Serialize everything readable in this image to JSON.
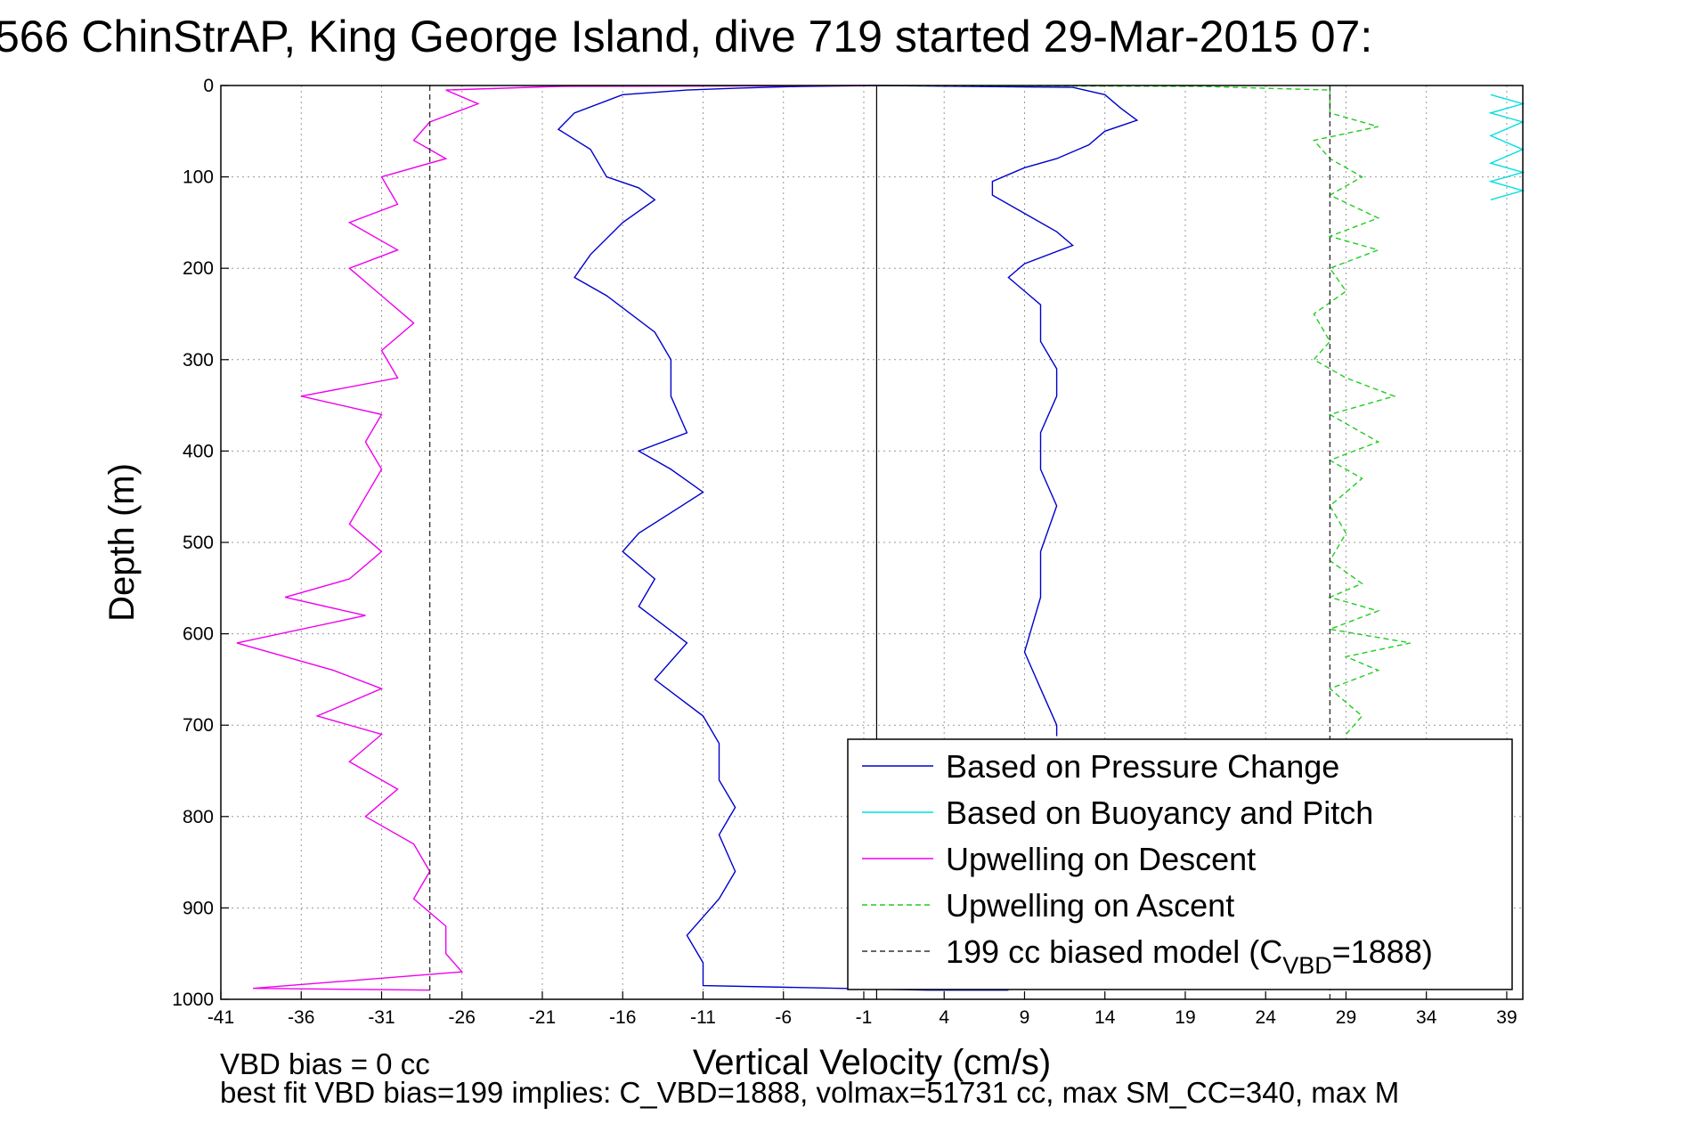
{
  "chart_data": {
    "type": "line",
    "title": "566 ChinStrAP, King George Island, dive 719 started 29-Mar-2015 07:",
    "xlabel": "Vertical Velocity (cm/s)",
    "ylabel": "Depth (m)",
    "xlim": [
      -41,
      40
    ],
    "ylim": [
      0,
      1000
    ],
    "y_reversed": true,
    "x_ticks": [
      -41,
      -36,
      -31,
      -26,
      -21,
      -16,
      -11,
      -6,
      -1,
      4,
      9,
      14,
      19,
      24,
      29,
      34,
      39
    ],
    "y_ticks": [
      0,
      100,
      200,
      300,
      400,
      500,
      600,
      700,
      800,
      900,
      1000
    ],
    "grid": true,
    "legend_position": "bottom-right",
    "vertical_rule_x": -0.2,
    "series": [
      {
        "name": "Based on Pressure Change",
        "color": "#0000cc",
        "style": "solid",
        "points": [
          [
            -0.2,
            0
          ],
          [
            -5,
            1
          ],
          [
            -9,
            3
          ],
          [
            -12,
            5
          ],
          [
            -16,
            10
          ],
          [
            -19,
            30
          ],
          [
            -20,
            48
          ],
          [
            -18,
            70
          ],
          [
            -17,
            100
          ],
          [
            -15,
            112
          ],
          [
            -14,
            125
          ],
          [
            -16,
            150
          ],
          [
            -18,
            185
          ],
          [
            -19,
            210
          ],
          [
            -17,
            230
          ],
          [
            -14,
            270
          ],
          [
            -13,
            300
          ],
          [
            -13,
            340
          ],
          [
            -12,
            380
          ],
          [
            -15,
            400
          ],
          [
            -13,
            420
          ],
          [
            -11,
            445
          ],
          [
            -15,
            490
          ],
          [
            -16,
            510
          ],
          [
            -14,
            540
          ],
          [
            -15,
            570
          ],
          [
            -12,
            610
          ],
          [
            -14,
            650
          ],
          [
            -11,
            690
          ],
          [
            -10,
            720
          ],
          [
            -10,
            760
          ],
          [
            -9,
            790
          ],
          [
            -10,
            820
          ],
          [
            -9,
            860
          ],
          [
            -10,
            890
          ],
          [
            -12,
            930
          ],
          [
            -11,
            960
          ],
          [
            -11,
            985
          ],
          [
            3,
            990
          ],
          [
            8,
            990
          ]
        ]
      },
      {
        "name": "Based on Pressure Change",
        "color": "#0000cc",
        "style": "solid",
        "points": [
          [
            -0.2,
            0
          ],
          [
            12,
            2
          ],
          [
            14,
            10
          ],
          [
            15,
            25
          ],
          [
            16,
            38
          ],
          [
            14,
            50
          ],
          [
            13,
            65
          ],
          [
            11,
            80
          ],
          [
            9,
            90
          ],
          [
            7,
            105
          ],
          [
            7,
            120
          ],
          [
            9,
            140
          ],
          [
            11,
            160
          ],
          [
            12,
            175
          ],
          [
            9,
            195
          ],
          [
            8,
            210
          ],
          [
            10,
            240
          ],
          [
            10,
            280
          ],
          [
            11,
            310
          ],
          [
            11,
            340
          ],
          [
            10,
            380
          ],
          [
            10,
            420
          ],
          [
            11,
            460
          ],
          [
            10,
            510
          ],
          [
            10,
            560
          ],
          [
            9,
            620
          ],
          [
            10,
            660
          ],
          [
            11,
            700
          ],
          [
            11,
            712
          ]
        ]
      },
      {
        "name": "Based on Buoyancy and Pitch",
        "color": "#00e0e0",
        "style": "solid",
        "points": [
          [
            38,
            10
          ],
          [
            40,
            20
          ],
          [
            38,
            30
          ],
          [
            40,
            40
          ],
          [
            38,
            55
          ],
          [
            40,
            70
          ],
          [
            38,
            85
          ],
          [
            40,
            95
          ],
          [
            38,
            105
          ],
          [
            40,
            115
          ],
          [
            38,
            125
          ]
        ]
      },
      {
        "name": "Upwelling on Descent",
        "color": "#ee00ee",
        "style": "solid",
        "points": [
          [
            -0.2,
            0
          ],
          [
            -20,
            1
          ],
          [
            -27,
            5
          ],
          [
            -25,
            20
          ],
          [
            -28,
            40
          ],
          [
            -29,
            60
          ],
          [
            -27,
            80
          ],
          [
            -31,
            100
          ],
          [
            -30,
            130
          ],
          [
            -33,
            150
          ],
          [
            -30,
            180
          ],
          [
            -33,
            200
          ],
          [
            -31,
            230
          ],
          [
            -29,
            260
          ],
          [
            -31,
            290
          ],
          [
            -30,
            320
          ],
          [
            -36,
            340
          ],
          [
            -31,
            360
          ],
          [
            -32,
            390
          ],
          [
            -31,
            420
          ],
          [
            -32,
            450
          ],
          [
            -33,
            480
          ],
          [
            -31,
            510
          ],
          [
            -33,
            540
          ],
          [
            -37,
            560
          ],
          [
            -32,
            580
          ],
          [
            -40,
            610
          ],
          [
            -34,
            640
          ],
          [
            -31,
            660
          ],
          [
            -35,
            690
          ],
          [
            -31,
            710
          ],
          [
            -33,
            740
          ],
          [
            -30,
            770
          ],
          [
            -32,
            800
          ],
          [
            -29,
            830
          ],
          [
            -28,
            860
          ],
          [
            -29,
            890
          ],
          [
            -27,
            920
          ],
          [
            -27,
            950
          ],
          [
            -26,
            970
          ],
          [
            -39,
            988
          ],
          [
            -28,
            990
          ]
        ]
      },
      {
        "name": "Upwelling on Ascent",
        "color": "#22cc22",
        "style": "dashed",
        "points": [
          [
            -0.2,
            0
          ],
          [
            20,
            1
          ],
          [
            28,
            5
          ],
          [
            28,
            30
          ],
          [
            31,
            45
          ],
          [
            27,
            60
          ],
          [
            28,
            80
          ],
          [
            30,
            100
          ],
          [
            28,
            120
          ],
          [
            31,
            145
          ],
          [
            28,
            165
          ],
          [
            31,
            180
          ],
          [
            28,
            200
          ],
          [
            29,
            225
          ],
          [
            27,
            250
          ],
          [
            28,
            280
          ],
          [
            27,
            300
          ],
          [
            29,
            320
          ],
          [
            32,
            340
          ],
          [
            28,
            360
          ],
          [
            31,
            390
          ],
          [
            28,
            410
          ],
          [
            30,
            430
          ],
          [
            28,
            460
          ],
          [
            29,
            490
          ],
          [
            28,
            520
          ],
          [
            30,
            545
          ],
          [
            28,
            560
          ],
          [
            31,
            575
          ],
          [
            28,
            595
          ],
          [
            33,
            610
          ],
          [
            29,
            625
          ],
          [
            31,
            640
          ],
          [
            28,
            660
          ],
          [
            30,
            690
          ],
          [
            29,
            710
          ]
        ]
      },
      {
        "name": "199 cc biased model (C_VBD=1888)",
        "color": "#333333",
        "style": "dashed",
        "points": [
          [
            -28,
            0
          ],
          [
            -28,
            1000
          ]
        ]
      },
      {
        "name": "199 cc biased model (C_VBD=1888)",
        "color": "#333333",
        "style": "dashed",
        "points": [
          [
            28,
            0
          ],
          [
            28,
            1000
          ]
        ]
      }
    ],
    "legend": [
      {
        "label": "Based on Pressure Change",
        "color": "#0000cc",
        "style": "solid"
      },
      {
        "label": "Based on Buoyancy and Pitch",
        "color": "#00e0e0",
        "style": "solid"
      },
      {
        "label": "Upwelling on Descent",
        "color": "#ee00ee",
        "style": "solid"
      },
      {
        "label": "Upwelling on Ascent",
        "color": "#22cc22",
        "style": "dashed"
      },
      {
        "label": "199 cc biased model (C",
        "sub": "VBD",
        "tail": "=1888)",
        "color": "#333333",
        "style": "dashed"
      }
    ],
    "notes": [
      "VBD bias = 0 cc",
      "best fit VBD bias=199 implies: C_VBD=1888, volmax=51731 cc, max SM_CC=340, max M"
    ]
  }
}
